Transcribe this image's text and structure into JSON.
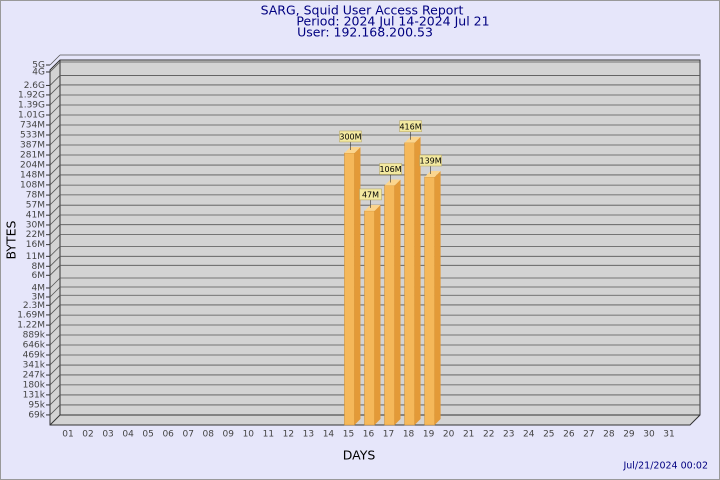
{
  "chart_data": {
    "type": "bar",
    "title": "SARG, Squid User Access Report",
    "subtitle": [
      "Period: 2024 Jul 14-2024 Jul 21",
      "User: 192.168.200.53"
    ],
    "x_label": "DAYS",
    "y_label": "BYTES",
    "footer": "Jul/21/2024 00:02",
    "categories": [
      "01",
      "02",
      "03",
      "04",
      "05",
      "06",
      "07",
      "08",
      "09",
      "10",
      "11",
      "12",
      "13",
      "14",
      "15",
      "16",
      "17",
      "18",
      "19",
      "20",
      "21",
      "22",
      "23",
      "24",
      "25",
      "26",
      "27",
      "28",
      "29",
      "30",
      "31"
    ],
    "values": [
      null,
      null,
      null,
      null,
      null,
      null,
      null,
      null,
      null,
      null,
      null,
      null,
      null,
      null,
      300000000,
      47000000,
      106000000,
      416000000,
      139000000,
      null,
      null,
      null,
      null,
      null,
      null,
      null,
      null,
      null,
      null,
      null,
      null
    ],
    "value_labels": [
      null,
      null,
      null,
      null,
      null,
      null,
      null,
      null,
      null,
      null,
      null,
      null,
      null,
      null,
      "300M",
      "47M",
      "106M",
      "416M",
      "139M",
      null,
      null,
      null,
      null,
      null,
      null,
      null,
      null,
      null,
      null,
      null,
      null
    ],
    "color": "#f5b85a",
    "log_scale": true,
    "grid": true,
    "ylim": [
      50000,
      5000000000
    ],
    "yticks": [
      {
        "value": 69000,
        "label": "69k"
      },
      {
        "value": 95000,
        "label": "95k"
      },
      {
        "value": 131000,
        "label": "131k"
      },
      {
        "value": 180000,
        "label": "180k"
      },
      {
        "value": 247000,
        "label": "247k"
      },
      {
        "value": 341000,
        "label": "341k"
      },
      {
        "value": 469000,
        "label": "469k"
      },
      {
        "value": 646000,
        "label": "646k"
      },
      {
        "value": 889000,
        "label": "889k"
      },
      {
        "value": 1220000,
        "label": "1.22M"
      },
      {
        "value": 1690000,
        "label": "1.69M"
      },
      {
        "value": 2300000,
        "label": "2.3M"
      },
      {
        "value": 3000000,
        "label": "3M"
      },
      {
        "value": 4000000,
        "label": "4M"
      },
      {
        "value": 6000000,
        "label": "6M"
      },
      {
        "value": 8000000,
        "label": "8M"
      },
      {
        "value": 11000000,
        "label": "11M"
      },
      {
        "value": 16000000,
        "label": "16M"
      },
      {
        "value": 22000000,
        "label": "22M"
      },
      {
        "value": 30000000,
        "label": "30M"
      },
      {
        "value": 41000000,
        "label": "41M"
      },
      {
        "value": 57000000,
        "label": "57M"
      },
      {
        "value": 78000000,
        "label": "78M"
      },
      {
        "value": 108000000,
        "label": "108M"
      },
      {
        "value": 148000000,
        "label": "148M"
      },
      {
        "value": 204000000,
        "label": "204M"
      },
      {
        "value": 281000000,
        "label": "281M"
      },
      {
        "value": 387000000,
        "label": "387M"
      },
      {
        "value": 533000000,
        "label": "533M"
      },
      {
        "value": 734000000,
        "label": "734M"
      },
      {
        "value": 1010000000,
        "label": "1.01G"
      },
      {
        "value": 1390000000,
        "label": "1.39G"
      },
      {
        "value": 1920000000,
        "label": "1.92G"
      },
      {
        "value": 2600000000,
        "label": "2.6G"
      },
      {
        "value": 4000000000,
        "label": "4G"
      },
      {
        "value": 5000000000,
        "label": "5G"
      }
    ]
  }
}
